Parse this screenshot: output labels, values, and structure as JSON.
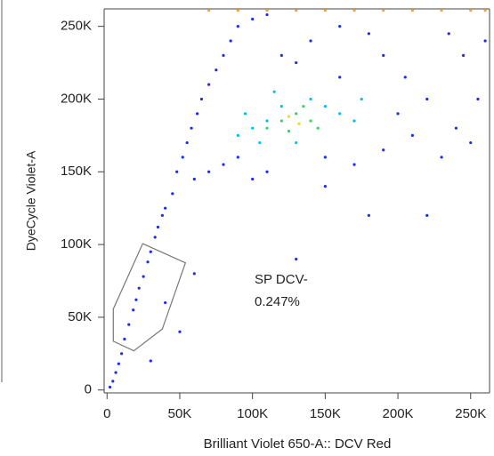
{
  "chart_data": {
    "type": "scatter",
    "x_label": "Brilliant Violet 650-A:: DCV Red",
    "y_label": "DyeCycle Violet-A",
    "xlim": [
      -2,
      263
    ],
    "ylim": [
      -2,
      262
    ],
    "xticks": [
      {
        "value": 0,
        "label": "0"
      },
      {
        "value": 50,
        "label": "50K"
      },
      {
        "value": 100,
        "label": "100K"
      },
      {
        "value": 150,
        "label": "150K"
      },
      {
        "value": 200,
        "label": "200K"
      },
      {
        "value": 250,
        "label": "250K"
      }
    ],
    "yticks": [
      {
        "value": 0,
        "label": "0"
      },
      {
        "value": 50,
        "label": "50K"
      },
      {
        "value": 100,
        "label": "100K"
      },
      {
        "value": 150,
        "label": "150K"
      },
      {
        "value": 200,
        "label": "200K"
      },
      {
        "value": 250,
        "label": "250K"
      }
    ],
    "series": [
      {
        "color": "#1a2cf0",
        "x": [
          2,
          4,
          6,
          8,
          10,
          12,
          15,
          18,
          20,
          22,
          25,
          28,
          30,
          33,
          35,
          38,
          40,
          45,
          48,
          52,
          55,
          58,
          62,
          65,
          70,
          75,
          80,
          85,
          90,
          100,
          110,
          60,
          70,
          80,
          90,
          200,
          210,
          220,
          230,
          240,
          250,
          255,
          245,
          235,
          190,
          180,
          160,
          140,
          130,
          120,
          150,
          170,
          190,
          110,
          100,
          40,
          50,
          30,
          60,
          180,
          220,
          130,
          150,
          205,
          260,
          160
        ],
        "y": [
          2,
          6,
          12,
          18,
          25,
          35,
          45,
          55,
          62,
          70,
          78,
          88,
          95,
          105,
          112,
          120,
          125,
          135,
          150,
          160,
          170,
          180,
          190,
          200,
          210,
          220,
          230,
          240,
          250,
          255,
          258,
          145,
          150,
          155,
          160,
          190,
          175,
          200,
          160,
          180,
          170,
          200,
          230,
          245,
          230,
          245,
          250,
          240,
          225,
          230,
          160,
          155,
          165,
          150,
          145,
          60,
          40,
          20,
          80,
          120,
          120,
          90,
          140,
          215,
          240,
          215
        ]
      },
      {
        "color": "#00c0f0",
        "x": [
          90,
          100,
          110,
          120,
          140,
          150,
          160,
          170,
          105,
          130,
          175,
          95,
          115
        ],
        "y": [
          175,
          180,
          185,
          195,
          200,
          195,
          190,
          185,
          170,
          170,
          200,
          190,
          205
        ]
      },
      {
        "color": "#30d860",
        "x": [
          110,
          120,
          130,
          140,
          125,
          135,
          145
        ],
        "y": [
          180,
          185,
          190,
          185,
          178,
          195,
          180
        ]
      },
      {
        "color": "#e8e020",
        "x": [
          125,
          132
        ],
        "y": [
          188,
          183
        ]
      },
      {
        "color": "#f0a040",
        "x": [
          70,
          90,
          110,
          130,
          150,
          170,
          190,
          210,
          230,
          250,
          260
        ],
        "y": [
          261,
          261,
          261,
          261,
          261,
          261,
          261,
          261,
          261,
          261,
          261
        ]
      }
    ],
    "gate": {
      "name": "SP DCV-",
      "percent_label": "0.247%",
      "x": [
        24.5,
        53.9,
        38,
        18.4,
        4.3,
        4.3
      ],
      "y": [
        100.6,
        87.4,
        41.9,
        26.9,
        33.5,
        55.7
      ]
    }
  }
}
